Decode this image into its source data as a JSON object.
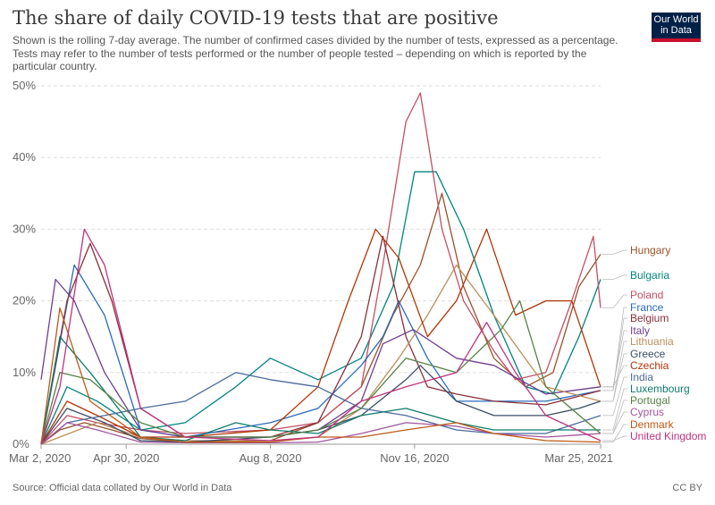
{
  "header": {
    "title": "The share of daily COVID-19 tests that are positive",
    "subtitle": "Shown is the rolling 7-day average. The number of confirmed cases divided by the number of tests, expressed as a percentage. Tests may refer to the number of tests performed or the number of people tested – depending on which is reported by the particular country."
  },
  "logo": {
    "line1": "Our World",
    "line2": "in Data"
  },
  "footer": {
    "source": "Source: Official data collated by Our World in Data",
    "license": "CC BY"
  },
  "chart_data": {
    "type": "line",
    "ylim": [
      0,
      50
    ],
    "y_ticks": [
      0,
      10,
      20,
      30,
      40,
      50
    ],
    "y_tick_labels": [
      "0%",
      "10%",
      "20%",
      "30%",
      "40%",
      "50%"
    ],
    "x_domain": [
      "2020-03-02",
      "2021-03-25"
    ],
    "x_ticks": [
      "2020-03-02",
      "2020-04-30",
      "2020-08-08",
      "2020-11-16",
      "2021-03-25"
    ],
    "x_tick_labels": [
      "Mar 2, 2020",
      "Apr 30, 2020",
      "Aug 8, 2020",
      "Nov 16, 2020",
      "Mar 25, 2021"
    ],
    "grid": true,
    "legend": "right",
    "series": [
      {
        "name": "Hungary",
        "color": "#9a5129",
        "x": [
          "2020-03-02",
          "2020-03-15",
          "2020-04-01",
          "2020-04-20",
          "2020-05-10",
          "2020-06-10",
          "2020-08-08",
          "2020-09-10",
          "2020-10-10",
          "2020-11-01",
          "2020-11-20",
          "2020-12-05",
          "2020-12-20",
          "2021-01-10",
          "2021-02-01",
          "2021-02-20",
          "2021-03-10",
          "2021-03-25"
        ],
        "y": [
          0,
          2,
          3,
          2,
          0.8,
          0.3,
          0.5,
          3,
          8,
          18,
          25,
          35,
          22,
          12,
          8,
          10,
          22,
          26.5
        ]
      },
      {
        "name": "Bulgaria",
        "color": "#00847e",
        "x": [
          "2020-03-02",
          "2020-03-20",
          "2020-04-10",
          "2020-05-10",
          "2020-06-10",
          "2020-07-15",
          "2020-08-08",
          "2020-09-10",
          "2020-10-10",
          "2020-11-01",
          "2020-11-16",
          "2020-12-01",
          "2020-12-20",
          "2021-01-10",
          "2021-02-01",
          "2021-02-20",
          "2021-03-10",
          "2021-03-25"
        ],
        "y": [
          0,
          8,
          6,
          2,
          3,
          8,
          12,
          9,
          12,
          22,
          38,
          38,
          30,
          18,
          8,
          7,
          15,
          23
        ]
      },
      {
        "name": "Poland",
        "color": "#c15065",
        "x": [
          "2020-03-02",
          "2020-03-20",
          "2020-04-10",
          "2020-05-10",
          "2020-06-10",
          "2020-08-08",
          "2020-09-10",
          "2020-10-10",
          "2020-10-25",
          "2020-11-10",
          "2020-11-20",
          "2020-12-05",
          "2020-12-20",
          "2021-01-10",
          "2021-01-25",
          "2021-02-15",
          "2021-03-05",
          "2021-03-20",
          "2021-03-25"
        ],
        "y": [
          0,
          4,
          3,
          2,
          1.5,
          2,
          3,
          8,
          25,
          45,
          49,
          30,
          20,
          13,
          9,
          10,
          20,
          29,
          19
        ]
      },
      {
        "name": "France",
        "color": "#286bbb",
        "x": [
          "2020-03-02",
          "2020-03-25",
          "2020-04-15",
          "2020-05-10",
          "2020-06-10",
          "2020-08-08",
          "2020-09-10",
          "2020-10-10",
          "2020-10-25",
          "2020-11-05",
          "2020-11-25",
          "2020-12-15",
          "2021-01-10",
          "2021-02-15",
          "2021-03-25"
        ],
        "y": [
          0,
          25,
          18,
          2,
          1,
          3,
          5,
          11,
          15,
          20,
          12,
          6,
          6,
          6,
          7.5
        ]
      },
      {
        "name": "Belgium",
        "color": "#883039",
        "x": [
          "2020-03-02",
          "2020-03-20",
          "2020-04-05",
          "2020-04-20",
          "2020-05-10",
          "2020-06-10",
          "2020-08-08",
          "2020-09-10",
          "2020-10-10",
          "2020-10-25",
          "2020-11-10",
          "2020-11-25",
          "2020-12-15",
          "2021-01-10",
          "2021-02-15",
          "2021-03-25"
        ],
        "y": [
          0,
          20,
          28,
          20,
          5,
          1,
          1,
          3,
          15,
          29,
          15,
          8,
          7,
          6,
          5.5,
          7.5
        ]
      },
      {
        "name": "Italy",
        "color": "#6d3e91",
        "x": [
          "2020-03-02",
          "2020-03-12",
          "2020-03-25",
          "2020-04-15",
          "2020-05-10",
          "2020-06-10",
          "2020-08-08",
          "2020-09-10",
          "2020-10-10",
          "2020-10-25",
          "2020-11-15",
          "2020-12-15",
          "2021-01-10",
          "2021-02-15",
          "2021-03-25"
        ],
        "y": [
          9,
          23,
          20,
          10,
          2,
          1,
          1,
          2,
          6,
          14,
          16,
          12,
          11,
          7,
          8
        ]
      },
      {
        "name": "Lithuania",
        "color": "#bc8e5a",
        "x": [
          "2020-03-02",
          "2020-04-10",
          "2020-05-10",
          "2020-06-10",
          "2020-08-08",
          "2020-09-10",
          "2020-10-10",
          "2020-11-05",
          "2020-11-25",
          "2020-12-15",
          "2021-01-10",
          "2021-02-15",
          "2021-03-25"
        ],
        "y": [
          0,
          3,
          1,
          0.5,
          0.5,
          1,
          5,
          12,
          18,
          25,
          18,
          8,
          6
        ]
      },
      {
        "name": "Greece",
        "color": "#3c4e66",
        "x": [
          "2020-03-02",
          "2020-03-20",
          "2020-04-15",
          "2020-05-10",
          "2020-06-10",
          "2020-08-08",
          "2020-09-10",
          "2020-10-10",
          "2020-11-10",
          "2020-11-20",
          "2020-12-15",
          "2021-01-10",
          "2021-02-15",
          "2021-03-10",
          "2021-03-25"
        ],
        "y": [
          0,
          5,
          3,
          0.5,
          0.3,
          1,
          2,
          4,
          9,
          11,
          6,
          4,
          4,
          5,
          6
        ]
      },
      {
        "name": "Czechia",
        "color": "#b13507",
        "x": [
          "2020-03-02",
          "2020-03-20",
          "2020-04-10",
          "2020-05-10",
          "2020-06-10",
          "2020-08-08",
          "2020-09-10",
          "2020-10-01",
          "2020-10-20",
          "2020-11-05",
          "2020-11-25",
          "2020-12-15",
          "2021-01-05",
          "2021-01-25",
          "2021-02-15",
          "2021-03-05",
          "2021-03-25"
        ],
        "y": [
          0,
          6,
          4,
          1,
          1,
          2,
          8,
          20,
          30,
          26,
          15,
          20,
          30,
          18,
          20,
          20,
          8
        ]
      },
      {
        "name": "India",
        "color": "#4c6a9c",
        "x": [
          "2020-03-02",
          "2020-03-20",
          "2020-04-15",
          "2020-05-10",
          "2020-06-10",
          "2020-07-15",
          "2020-08-08",
          "2020-09-10",
          "2020-10-10",
          "2020-11-10",
          "2020-12-15",
          "2021-01-10",
          "2021-02-15",
          "2021-03-25"
        ],
        "y": [
          0,
          3,
          4,
          5,
          6,
          10,
          9,
          8,
          5,
          4,
          2,
          1.5,
          1.5,
          4
        ]
      },
      {
        "name": "Luxembourg",
        "color": "#0f7a6b",
        "x": [
          "2020-03-02",
          "2020-03-15",
          "2020-04-05",
          "2020-05-10",
          "2020-06-10",
          "2020-07-15",
          "2020-08-08",
          "2020-09-10",
          "2020-10-10",
          "2020-11-10",
          "2020-12-15",
          "2021-01-10",
          "2021-02-15",
          "2021-03-25"
        ],
        "y": [
          0,
          15,
          10,
          1,
          0.5,
          3,
          2,
          1.5,
          4,
          5,
          3,
          2,
          2,
          2
        ]
      },
      {
        "name": "Portugal",
        "color": "#578145",
        "x": [
          "2020-03-02",
          "2020-03-15",
          "2020-04-05",
          "2020-05-10",
          "2020-06-10",
          "2020-08-08",
          "2020-09-10",
          "2020-10-10",
          "2020-11-10",
          "2020-12-15",
          "2021-01-15",
          "2021-01-28",
          "2021-02-15",
          "2021-03-25"
        ],
        "y": [
          0,
          10,
          9,
          3,
          1,
          1,
          2,
          5,
          12,
          10,
          16,
          20,
          8,
          1.5
        ]
      },
      {
        "name": "Cyprus",
        "color": "#a2559c",
        "x": [
          "2020-03-02",
          "2020-03-20",
          "2020-04-10",
          "2020-05-10",
          "2020-06-10",
          "2020-08-08",
          "2020-09-10",
          "2020-10-10",
          "2020-11-10",
          "2020-12-15",
          "2021-01-10",
          "2021-02-15",
          "2021-03-25"
        ],
        "y": [
          0,
          3,
          2,
          0.3,
          0.2,
          0.2,
          0.3,
          1.5,
          3,
          2.5,
          1.5,
          1,
          1.5
        ]
      },
      {
        "name": "Denmark",
        "color": "#be5915",
        "x": [
          "2020-03-02",
          "2020-03-15",
          "2020-04-05",
          "2020-05-10",
          "2020-06-10",
          "2020-08-08",
          "2020-09-10",
          "2020-10-10",
          "2020-11-10",
          "2020-12-15",
          "2021-01-10",
          "2021-02-15",
          "2021-03-25"
        ],
        "y": [
          0,
          19,
          6,
          1,
          0.3,
          0.3,
          1,
          1,
          2,
          3,
          1.5,
          0.5,
          0.3
        ]
      },
      {
        "name": "United Kingdom",
        "color": "#c0327e",
        "x": [
          "2020-03-02",
          "2020-03-15",
          "2020-04-01",
          "2020-04-15",
          "2020-05-10",
          "2020-06-10",
          "2020-08-08",
          "2020-09-10",
          "2020-10-10",
          "2020-11-10",
          "2020-12-15",
          "2021-01-05",
          "2021-01-25",
          "2021-02-15",
          "2021-03-25"
        ],
        "y": [
          0,
          8,
          30,
          25,
          5,
          1,
          0.5,
          1,
          6,
          8,
          10,
          17,
          10,
          4,
          0.5
        ]
      }
    ]
  }
}
